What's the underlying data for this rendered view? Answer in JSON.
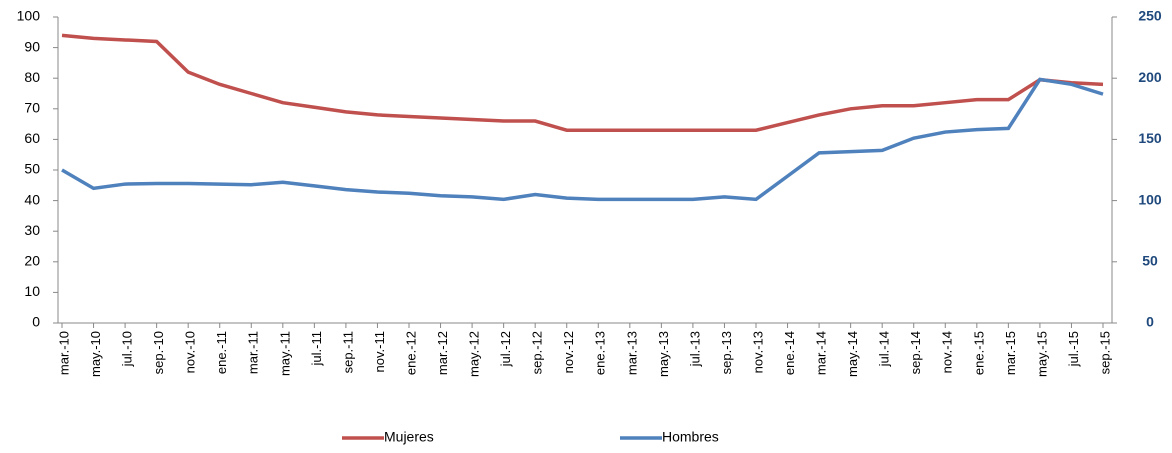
{
  "chart_data": {
    "type": "line",
    "categories": [
      "mar.-10",
      "may.-10",
      "jul.-10",
      "sep.-10",
      "nov.-10",
      "ene.-11",
      "mar.-11",
      "may.-11",
      "jul.-11",
      "sep.-11",
      "nov.-11",
      "ene.-12",
      "mar.-12",
      "may.-12",
      "jul.-12",
      "sep.-12",
      "nov.-12",
      "ene.-13",
      "mar.-13",
      "may.-13",
      "jul.-13",
      "sep.-13",
      "nov.-13",
      "ene.-14",
      "mar.-14",
      "may.-14",
      "jul.-14",
      "sep.-14",
      "nov.-14",
      "ene.-15",
      "mar.-15",
      "may.-15",
      "jul.-15",
      "sep.-15"
    ],
    "series": [
      {
        "name": "Mujeres",
        "color": "#c0504d",
        "values": [
          94,
          93,
          92.5,
          92,
          82,
          78,
          75,
          72,
          70.5,
          69,
          68,
          67.5,
          67,
          66.5,
          66,
          66,
          63,
          63,
          63,
          63,
          63,
          63,
          63,
          65.5,
          68,
          70,
          71,
          71,
          72,
          73,
          73,
          79.5,
          78.5,
          78
        ]
      },
      {
        "name": "Hombres",
        "color": "#4f81bd",
        "axis": "y2",
        "values": [
          125,
          110,
          113.5,
          114,
          114,
          113.5,
          113,
          115,
          112,
          109,
          107,
          106,
          104,
          103,
          101,
          105,
          102,
          101,
          101,
          101,
          101,
          103,
          101,
          120,
          139,
          140,
          141,
          151,
          156,
          158,
          159,
          199,
          195,
          187
        ]
      }
    ],
    "ylim": [
      0,
      100
    ],
    "yticks": [
      0,
      10,
      20,
      30,
      40,
      50,
      60,
      70,
      80,
      90,
      100
    ],
    "y2lim": [
      0,
      250
    ],
    "y2ticks": [
      0,
      50,
      100,
      150,
      200,
      250
    ],
    "legend": "bottom"
  }
}
